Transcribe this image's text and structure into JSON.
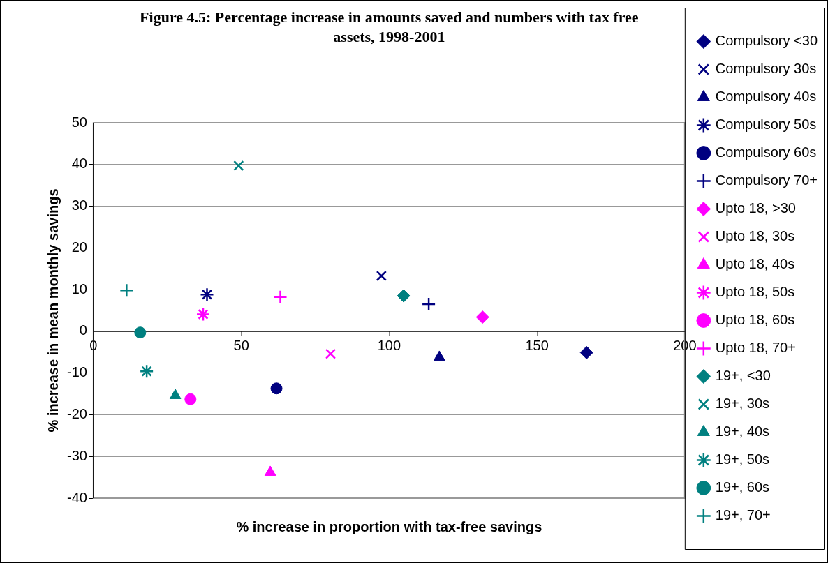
{
  "chart_data": {
    "type": "scatter",
    "title": "Figure 4.5: Percentage increase in amounts saved and numbers with tax free assets, 1998-2001",
    "xlabel": "% increase in proportion with tax-free savings",
    "ylabel": "% increase in mean monthly savings",
    "xlim": [
      0,
      200
    ],
    "xticks": [
      0,
      50,
      100,
      150,
      200
    ],
    "ylim": [
      -40,
      50
    ],
    "yticks": [
      -40,
      -30,
      -20,
      -10,
      0,
      10,
      20,
      30,
      40,
      50
    ],
    "grid": "y",
    "legend": "right",
    "series": [
      {
        "name": "Compulsory <30",
        "color": "#000080",
        "marker": "diamond",
        "x": [
          166.8
        ],
        "values": [
          -5.1
        ]
      },
      {
        "name": "Compulsory 30s",
        "color": "#000080",
        "marker": "cross",
        "x": [
          97.4
        ],
        "values": [
          13.3
        ]
      },
      {
        "name": "Compulsory 40s",
        "color": "#000080",
        "marker": "triangle",
        "x": [
          117
        ],
        "values": [
          -6.2
        ]
      },
      {
        "name": "Compulsory 50s",
        "color": "#000080",
        "x": [
          38.4
        ],
        "values": [
          8.8
        ]
      },
      {
        "name": "Compulsory 60s",
        "color": "#000080",
        "marker": "circle",
        "x": [
          61.9
        ],
        "values": [
          -13.7
        ]
      },
      {
        "name": "Compulsory 70+",
        "color": "#000080",
        "marker": "plus",
        "x": [
          113.4
        ],
        "values": [
          6.5
        ]
      },
      {
        "name": "Upto 18, >30",
        "color": "#ff00ff",
        "marker": "diamond",
        "x": [
          131.6
        ],
        "values": [
          3.4
        ]
      },
      {
        "name": "Upto 18, 30s",
        "color": "#ff00ff",
        "marker": "cross",
        "x": [
          80.2
        ],
        "values": [
          -5.4
        ]
      },
      {
        "name": "Upto 18, 40s",
        "color": "#ff00ff",
        "marker": "triangle",
        "x": [
          59.8
        ],
        "values": [
          -33.8
        ]
      },
      {
        "name": "Upto 18, 50s",
        "color": "#ff00ff",
        "x": [
          37.1
        ],
        "values": [
          4.1
        ]
      },
      {
        "name": "Upto 18, 60s",
        "color": "#ff00ff",
        "marker": "circle",
        "x": [
          32.8
        ],
        "values": [
          -16.3
        ]
      },
      {
        "name": "Upto 18, 70+",
        "color": "#ff00ff",
        "marker": "plus",
        "x": [
          63.2
        ],
        "values": [
          8.2
        ]
      },
      {
        "name": "19+, <30",
        "color": "#008080",
        "marker": "diamond",
        "x": [
          104.9
        ],
        "values": [
          8.5
        ]
      },
      {
        "name": "19+, 30s",
        "color": "#008080",
        "marker": "cross",
        "x": [
          49.1
        ],
        "values": [
          39.7
        ]
      },
      {
        "name": "19+, 40s",
        "color": "#008080",
        "marker": "triangle",
        "x": [
          27.7
        ],
        "values": [
          -15.4
        ]
      },
      {
        "name": "19+, 50s",
        "color": "#008080",
        "x": [
          18.0
        ],
        "values": [
          -9.6
        ]
      },
      {
        "name": "19+, 60s",
        "color": "#008080",
        "marker": "circle",
        "x": [
          15.8
        ],
        "values": [
          -0.3
        ]
      },
      {
        "name": "19+, 70+",
        "color": "#008080",
        "marker": "plus",
        "x": [
          11.2
        ],
        "values": [
          9.8
        ]
      }
    ]
  }
}
